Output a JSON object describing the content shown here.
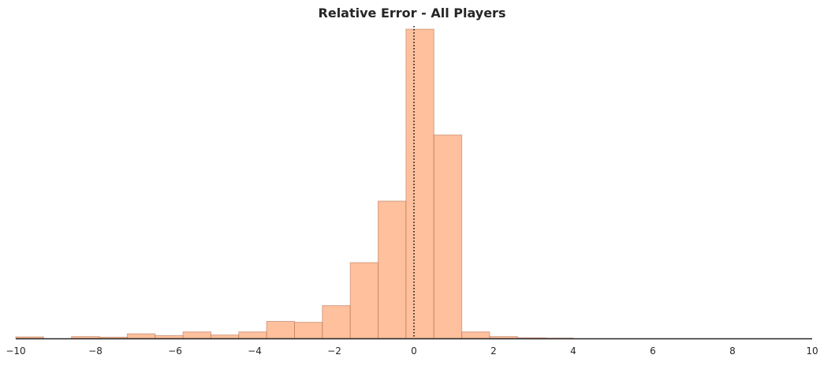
{
  "chart_data": {
    "type": "bar",
    "title": "Relative Error - All Players",
    "xlabel": "",
    "ylabel": "",
    "xlim": [
      -10,
      10
    ],
    "ylim": [
      0,
      1.0
    ],
    "bin_edges": [
      -10.0,
      -9.3,
      -8.6,
      -7.9,
      -7.2,
      -6.5,
      -5.8,
      -5.1,
      -4.4,
      -3.7,
      -3.0,
      -2.3,
      -1.6,
      -0.9,
      -0.2,
      0.5,
      1.2,
      1.9,
      2.6,
      3.3,
      4.0
    ],
    "values": [
      0.005,
      0.0,
      0.006,
      0.004,
      0.015,
      0.009,
      0.021,
      0.011,
      0.021,
      0.055,
      0.052,
      0.106,
      0.245,
      0.444,
      1.0,
      0.658,
      0.021,
      0.006,
      0.002,
      0.001
    ],
    "bar_color": "#ffa574",
    "bar_edge_color": "#b87a5a",
    "reference_line": {
      "x": 0,
      "style": "dotted",
      "color": "#000000"
    },
    "xticks": [
      -10,
      -8,
      -6,
      -4,
      -2,
      0,
      2,
      4,
      6,
      8,
      10
    ],
    "xtick_labels": [
      "−10",
      "−8",
      "−6",
      "−4",
      "−2",
      "0",
      "2",
      "4",
      "6",
      "8",
      "10"
    ],
    "grid": false,
    "legend": "none"
  }
}
